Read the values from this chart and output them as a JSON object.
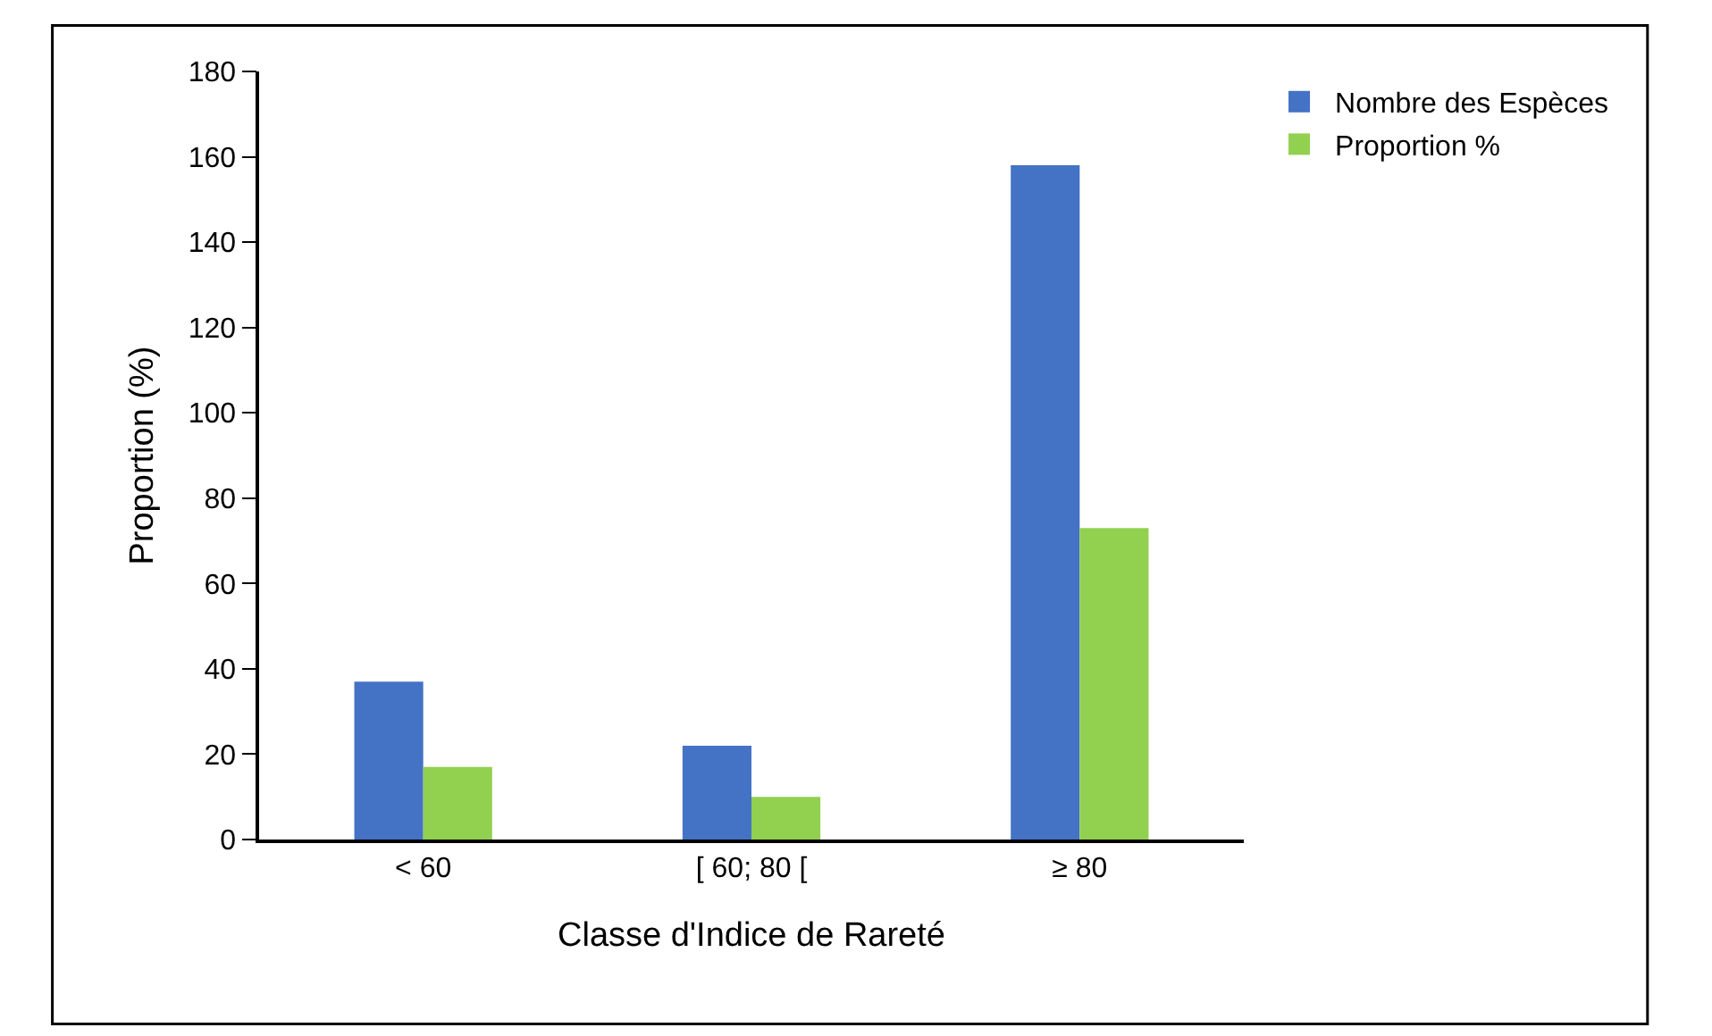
{
  "chart_data": {
    "type": "bar",
    "xlabel": "Classe d'Indice de Rareté",
    "ylabel": "Proportion (%)",
    "categories": [
      "< 60",
      "[ 60; 80 [",
      "≥ 80"
    ],
    "series": [
      {
        "name": "Nombre des Espèces",
        "color": "#4472c4",
        "values": [
          37,
          22,
          158
        ]
      },
      {
        "name": "Proportion %",
        "color": "#92d050",
        "values": [
          17,
          10,
          73
        ]
      }
    ],
    "ylim": [
      0,
      180
    ],
    "yticks": [
      0,
      20,
      40,
      60,
      80,
      100,
      120,
      140,
      160,
      180
    ],
    "grid": false,
    "legend": "top right"
  }
}
